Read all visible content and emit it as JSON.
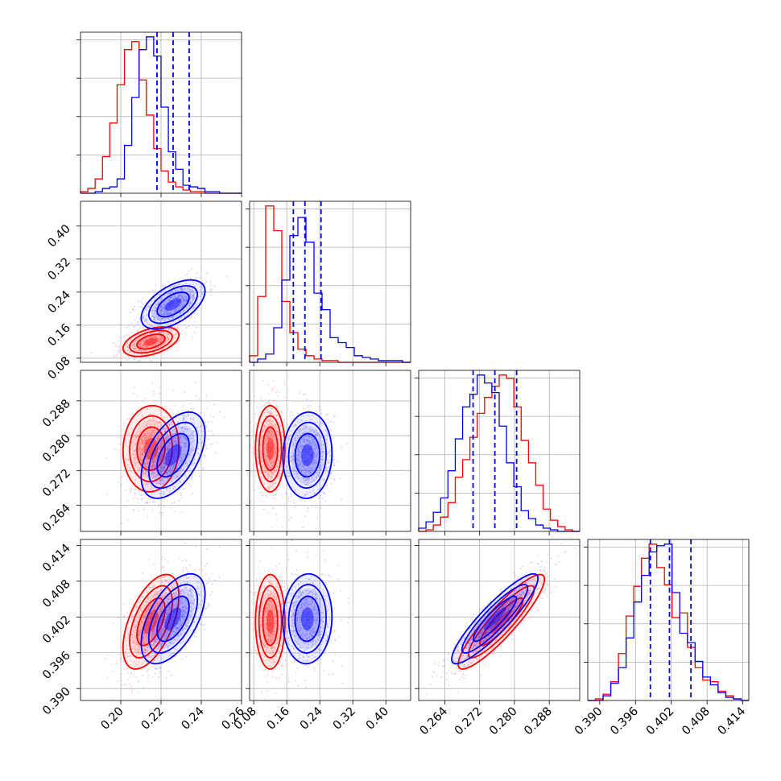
{
  "chart_data": {
    "type": "corner",
    "colors": {
      "blue": "#0000ff",
      "red": "#ff0000"
    },
    "legend": "none",
    "grid": true,
    "parameters": [
      {
        "range": [
          0.18,
          0.26
        ],
        "ticks": [
          "0.20",
          "0.22",
          "0.24",
          "0.26"
        ],
        "tick_values": [
          0.2,
          0.22,
          0.24,
          0.26
        ]
      },
      {
        "range": [
          0.07,
          0.46
        ],
        "ticks": [
          "0.08",
          "0.16",
          "0.24",
          "0.32",
          "0.40"
        ],
        "tick_values": [
          0.08,
          0.16,
          0.24,
          0.32,
          0.4
        ]
      },
      {
        "range": [
          0.258,
          0.295
        ],
        "ticks": [
          "0.264",
          "0.272",
          "0.280",
          "0.288"
        ],
        "tick_values": [
          0.264,
          0.272,
          0.28,
          0.288
        ]
      },
      {
        "range": [
          0.388,
          0.415
        ],
        "ticks": [
          "0.390",
          "0.396",
          "0.402",
          "0.408",
          "0.414"
        ],
        "tick_values": [
          0.39,
          0.396,
          0.402,
          0.408,
          0.414
        ]
      }
    ],
    "series": [
      {
        "color": "#0000ff",
        "means": [
          0.226,
          0.21,
          0.2755,
          0.4017
        ],
        "sds": [
          0.008,
          0.03,
          0.005,
          0.0038
        ],
        "quantiles": [
          [
            0.218,
            0.226,
            0.234
          ],
          [
            0.176,
            0.204,
            0.243
          ],
          [
            0.2705,
            0.2755,
            0.2805
          ],
          [
            0.3985,
            0.4017,
            0.4053
          ]
        ],
        "corr": {
          "0-1": 0.55,
          "0-2": 0.5,
          "0-3": 0.55,
          "1-2": 0.05,
          "1-3": 0.05,
          "2-3": 0.9
        }
      },
      {
        "color": "#ff0000",
        "means": [
          0.215,
          0.12,
          0.277,
          0.4012
        ],
        "sds": [
          0.007,
          0.018,
          0.005,
          0.004
        ],
        "corr": {
          "0-1": 0.45,
          "0-2": 0.05,
          "0-3": 0.55,
          "1-2": 0.0,
          "1-3": 0.0,
          "2-3": 0.9
        }
      }
    ],
    "histograms": [
      {
        "bins": [
          0.18,
          0.26,
          22
        ],
        "blue": [
          0,
          0,
          1,
          3,
          4,
          9,
          30,
          60,
          90,
          98,
          86,
          54,
          26,
          15,
          5,
          4,
          3,
          1,
          1,
          0,
          0,
          0
        ],
        "red": [
          1,
          3,
          9,
          23,
          44,
          68,
          90,
          95,
          71,
          49,
          28,
          14,
          7,
          4,
          2,
          1,
          1,
          0,
          0,
          0,
          0,
          0
        ]
      },
      {
        "bins": [
          0.07,
          0.46,
          20
        ],
        "blue": [
          0,
          2,
          5,
          21,
          50,
          77,
          88,
          73,
          42,
          32,
          15,
          12,
          9,
          4,
          3,
          2,
          1,
          1,
          1,
          0
        ],
        "red": [
          4,
          40,
          95,
          80,
          37,
          18,
          8,
          4,
          2,
          1,
          1,
          0,
          0,
          0,
          0,
          0,
          0,
          0,
          0,
          0
        ]
      },
      {
        "bins": [
          0.258,
          0.295,
          22
        ],
        "blue": [
          2,
          6,
          12,
          21,
          38,
          58,
          78,
          86,
          98,
          93,
          87,
          66,
          43,
          28,
          13,
          8,
          4,
          2,
          1,
          0,
          0,
          0
        ],
        "red": [
          0,
          1,
          4,
          9,
          18,
          34,
          45,
          59,
          74,
          84,
          91,
          98,
          96,
          78,
          57,
          43,
          29,
          14,
          7,
          3,
          1,
          0
        ]
      },
      {
        "bins": [
          0.388,
          0.415,
          21
        ],
        "blue": [
          0,
          0,
          3,
          11,
          21,
          40,
          63,
          80,
          95,
          99,
          100,
          69,
          43,
          37,
          25,
          15,
          10,
          5,
          2,
          1,
          0
        ],
        "red": [
          0,
          1,
          4,
          12,
          30,
          54,
          73,
          91,
          100,
          85,
          74,
          53,
          56,
          34,
          21,
          13,
          12,
          6,
          3,
          1,
          0
        ]
      }
    ]
  }
}
